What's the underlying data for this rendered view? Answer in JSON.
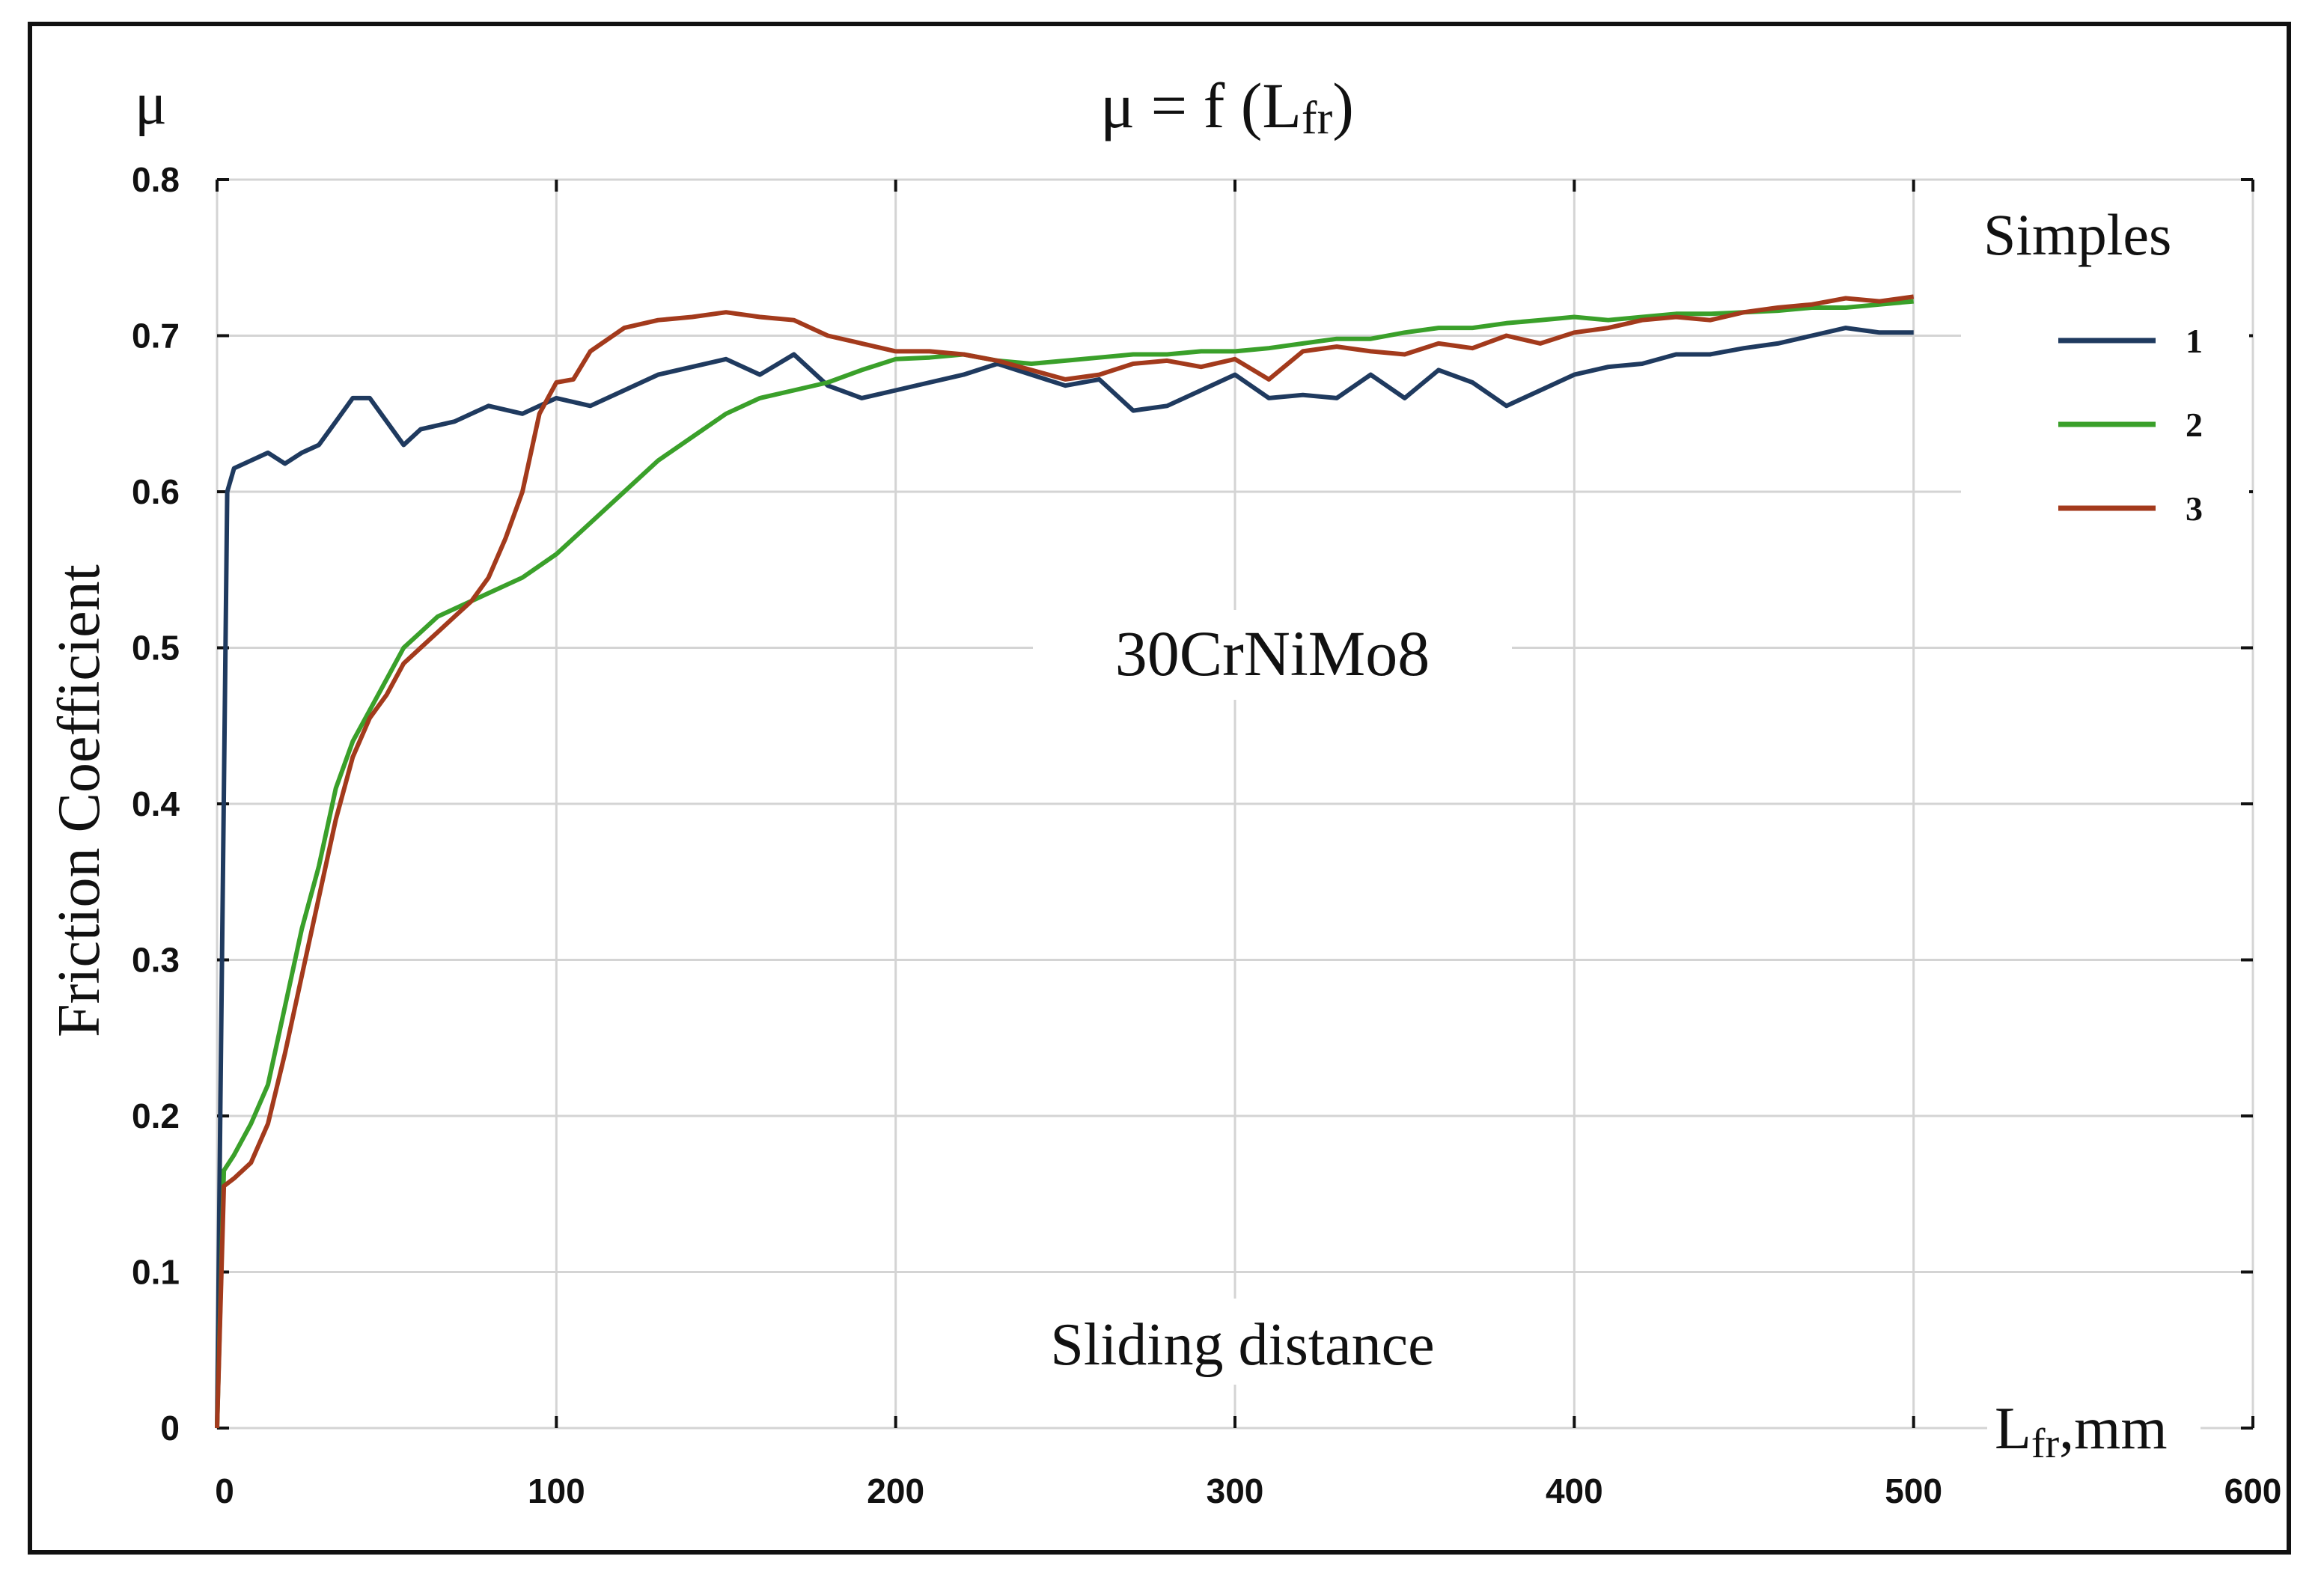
{
  "chart_data": {
    "type": "line",
    "title": "μ = f (Lfr)",
    "title_parts": {
      "main": "μ = f (L",
      "sub": "fr",
      "close": ")"
    },
    "corner_label": "μ",
    "ylabel": "Friction Coefficient",
    "xlabel": "Sliding distance",
    "x_unit_label": {
      "main": "L",
      "sub": "fr",
      "suffix": ",mm"
    },
    "annotation": "30CrNiMo8",
    "xlim": [
      0,
      600
    ],
    "ylim": [
      0,
      0.8
    ],
    "x_ticks": [
      "0",
      "100",
      "200",
      "300",
      "400",
      "500",
      "600"
    ],
    "y_ticks": [
      "0",
      "0.1",
      "0.2",
      "0.3",
      "0.4",
      "0.5",
      "0.6",
      "0.7",
      "0.8"
    ],
    "grid": true,
    "legend_title": "Simples",
    "legend_position": "right",
    "series": [
      {
        "name": "1",
        "color": "#1f3a5f",
        "points": [
          [
            0,
            0
          ],
          [
            1,
            0.21
          ],
          [
            3,
            0.6
          ],
          [
            5,
            0.615
          ],
          [
            10,
            0.62
          ],
          [
            15,
            0.625
          ],
          [
            20,
            0.618
          ],
          [
            25,
            0.625
          ],
          [
            30,
            0.63
          ],
          [
            35,
            0.645
          ],
          [
            40,
            0.66
          ],
          [
            45,
            0.66
          ],
          [
            50,
            0.645
          ],
          [
            55,
            0.63
          ],
          [
            60,
            0.64
          ],
          [
            70,
            0.645
          ],
          [
            80,
            0.655
          ],
          [
            90,
            0.65
          ],
          [
            100,
            0.66
          ],
          [
            110,
            0.655
          ],
          [
            120,
            0.665
          ],
          [
            130,
            0.675
          ],
          [
            140,
            0.68
          ],
          [
            150,
            0.685
          ],
          [
            160,
            0.675
          ],
          [
            170,
            0.688
          ],
          [
            180,
            0.668
          ],
          [
            190,
            0.66
          ],
          [
            200,
            0.665
          ],
          [
            210,
            0.67
          ],
          [
            220,
            0.675
          ],
          [
            230,
            0.682
          ],
          [
            240,
            0.675
          ],
          [
            250,
            0.668
          ],
          [
            260,
            0.672
          ],
          [
            270,
            0.652
          ],
          [
            280,
            0.655
          ],
          [
            290,
            0.665
          ],
          [
            300,
            0.675
          ],
          [
            310,
            0.66
          ],
          [
            320,
            0.662
          ],
          [
            330,
            0.66
          ],
          [
            340,
            0.675
          ],
          [
            350,
            0.66
          ],
          [
            360,
            0.678
          ],
          [
            370,
            0.67
          ],
          [
            380,
            0.655
          ],
          [
            390,
            0.665
          ],
          [
            400,
            0.675
          ],
          [
            410,
            0.68
          ],
          [
            420,
            0.682
          ],
          [
            430,
            0.688
          ],
          [
            440,
            0.688
          ],
          [
            450,
            0.692
          ],
          [
            460,
            0.695
          ],
          [
            470,
            0.7
          ],
          [
            480,
            0.705
          ],
          [
            490,
            0.702
          ],
          [
            500,
            0.702
          ]
        ]
      },
      {
        "name": "2",
        "color": "#3aa02a",
        "points": [
          [
            0,
            0
          ],
          [
            2,
            0.165
          ],
          [
            5,
            0.175
          ],
          [
            10,
            0.195
          ],
          [
            15,
            0.22
          ],
          [
            20,
            0.27
          ],
          [
            25,
            0.32
          ],
          [
            30,
            0.36
          ],
          [
            35,
            0.41
          ],
          [
            40,
            0.44
          ],
          [
            45,
            0.46
          ],
          [
            50,
            0.48
          ],
          [
            55,
            0.5
          ],
          [
            60,
            0.51
          ],
          [
            65,
            0.52
          ],
          [
            70,
            0.525
          ],
          [
            80,
            0.535
          ],
          [
            90,
            0.545
          ],
          [
            100,
            0.56
          ],
          [
            110,
            0.58
          ],
          [
            120,
            0.6
          ],
          [
            130,
            0.62
          ],
          [
            140,
            0.635
          ],
          [
            150,
            0.65
          ],
          [
            160,
            0.66
          ],
          [
            170,
            0.665
          ],
          [
            180,
            0.67
          ],
          [
            190,
            0.678
          ],
          [
            200,
            0.685
          ],
          [
            210,
            0.686
          ],
          [
            220,
            0.688
          ],
          [
            230,
            0.684
          ],
          [
            240,
            0.682
          ],
          [
            250,
            0.684
          ],
          [
            260,
            0.686
          ],
          [
            270,
            0.688
          ],
          [
            280,
            0.688
          ],
          [
            290,
            0.69
          ],
          [
            300,
            0.69
          ],
          [
            310,
            0.692
          ],
          [
            320,
            0.695
          ],
          [
            330,
            0.698
          ],
          [
            340,
            0.698
          ],
          [
            350,
            0.702
          ],
          [
            360,
            0.705
          ],
          [
            370,
            0.705
          ],
          [
            380,
            0.708
          ],
          [
            390,
            0.71
          ],
          [
            400,
            0.712
          ],
          [
            410,
            0.71
          ],
          [
            420,
            0.712
          ],
          [
            430,
            0.714
          ],
          [
            440,
            0.714
          ],
          [
            450,
            0.715
          ],
          [
            460,
            0.716
          ],
          [
            470,
            0.718
          ],
          [
            480,
            0.718
          ],
          [
            490,
            0.72
          ],
          [
            500,
            0.722
          ]
        ]
      },
      {
        "name": "3",
        "color": "#a33a1c",
        "points": [
          [
            0,
            0
          ],
          [
            2,
            0.155
          ],
          [
            5,
            0.16
          ],
          [
            10,
            0.17
          ],
          [
            15,
            0.195
          ],
          [
            20,
            0.24
          ],
          [
            25,
            0.29
          ],
          [
            30,
            0.34
          ],
          [
            35,
            0.39
          ],
          [
            40,
            0.43
          ],
          [
            45,
            0.455
          ],
          [
            50,
            0.47
          ],
          [
            55,
            0.49
          ],
          [
            60,
            0.5
          ],
          [
            65,
            0.51
          ],
          [
            70,
            0.52
          ],
          [
            75,
            0.53
          ],
          [
            80,
            0.545
          ],
          [
            85,
            0.57
          ],
          [
            90,
            0.6
          ],
          [
            95,
            0.65
          ],
          [
            100,
            0.67
          ],
          [
            105,
            0.672
          ],
          [
            110,
            0.69
          ],
          [
            120,
            0.705
          ],
          [
            130,
            0.71
          ],
          [
            140,
            0.712
          ],
          [
            150,
            0.715
          ],
          [
            160,
            0.712
          ],
          [
            170,
            0.71
          ],
          [
            180,
            0.7
          ],
          [
            190,
            0.695
          ],
          [
            200,
            0.69
          ],
          [
            210,
            0.69
          ],
          [
            220,
            0.688
          ],
          [
            230,
            0.684
          ],
          [
            240,
            0.678
          ],
          [
            250,
            0.672
          ],
          [
            260,
            0.675
          ],
          [
            270,
            0.682
          ],
          [
            280,
            0.684
          ],
          [
            290,
            0.68
          ],
          [
            300,
            0.685
          ],
          [
            310,
            0.672
          ],
          [
            320,
            0.69
          ],
          [
            330,
            0.693
          ],
          [
            340,
            0.69
          ],
          [
            350,
            0.688
          ],
          [
            360,
            0.695
          ],
          [
            370,
            0.692
          ],
          [
            380,
            0.7
          ],
          [
            390,
            0.695
          ],
          [
            400,
            0.702
          ],
          [
            410,
            0.705
          ],
          [
            420,
            0.71
          ],
          [
            430,
            0.712
          ],
          [
            440,
            0.71
          ],
          [
            450,
            0.715
          ],
          [
            460,
            0.718
          ],
          [
            470,
            0.72
          ],
          [
            480,
            0.724
          ],
          [
            490,
            0.722
          ],
          [
            500,
            0.725
          ]
        ]
      }
    ]
  }
}
